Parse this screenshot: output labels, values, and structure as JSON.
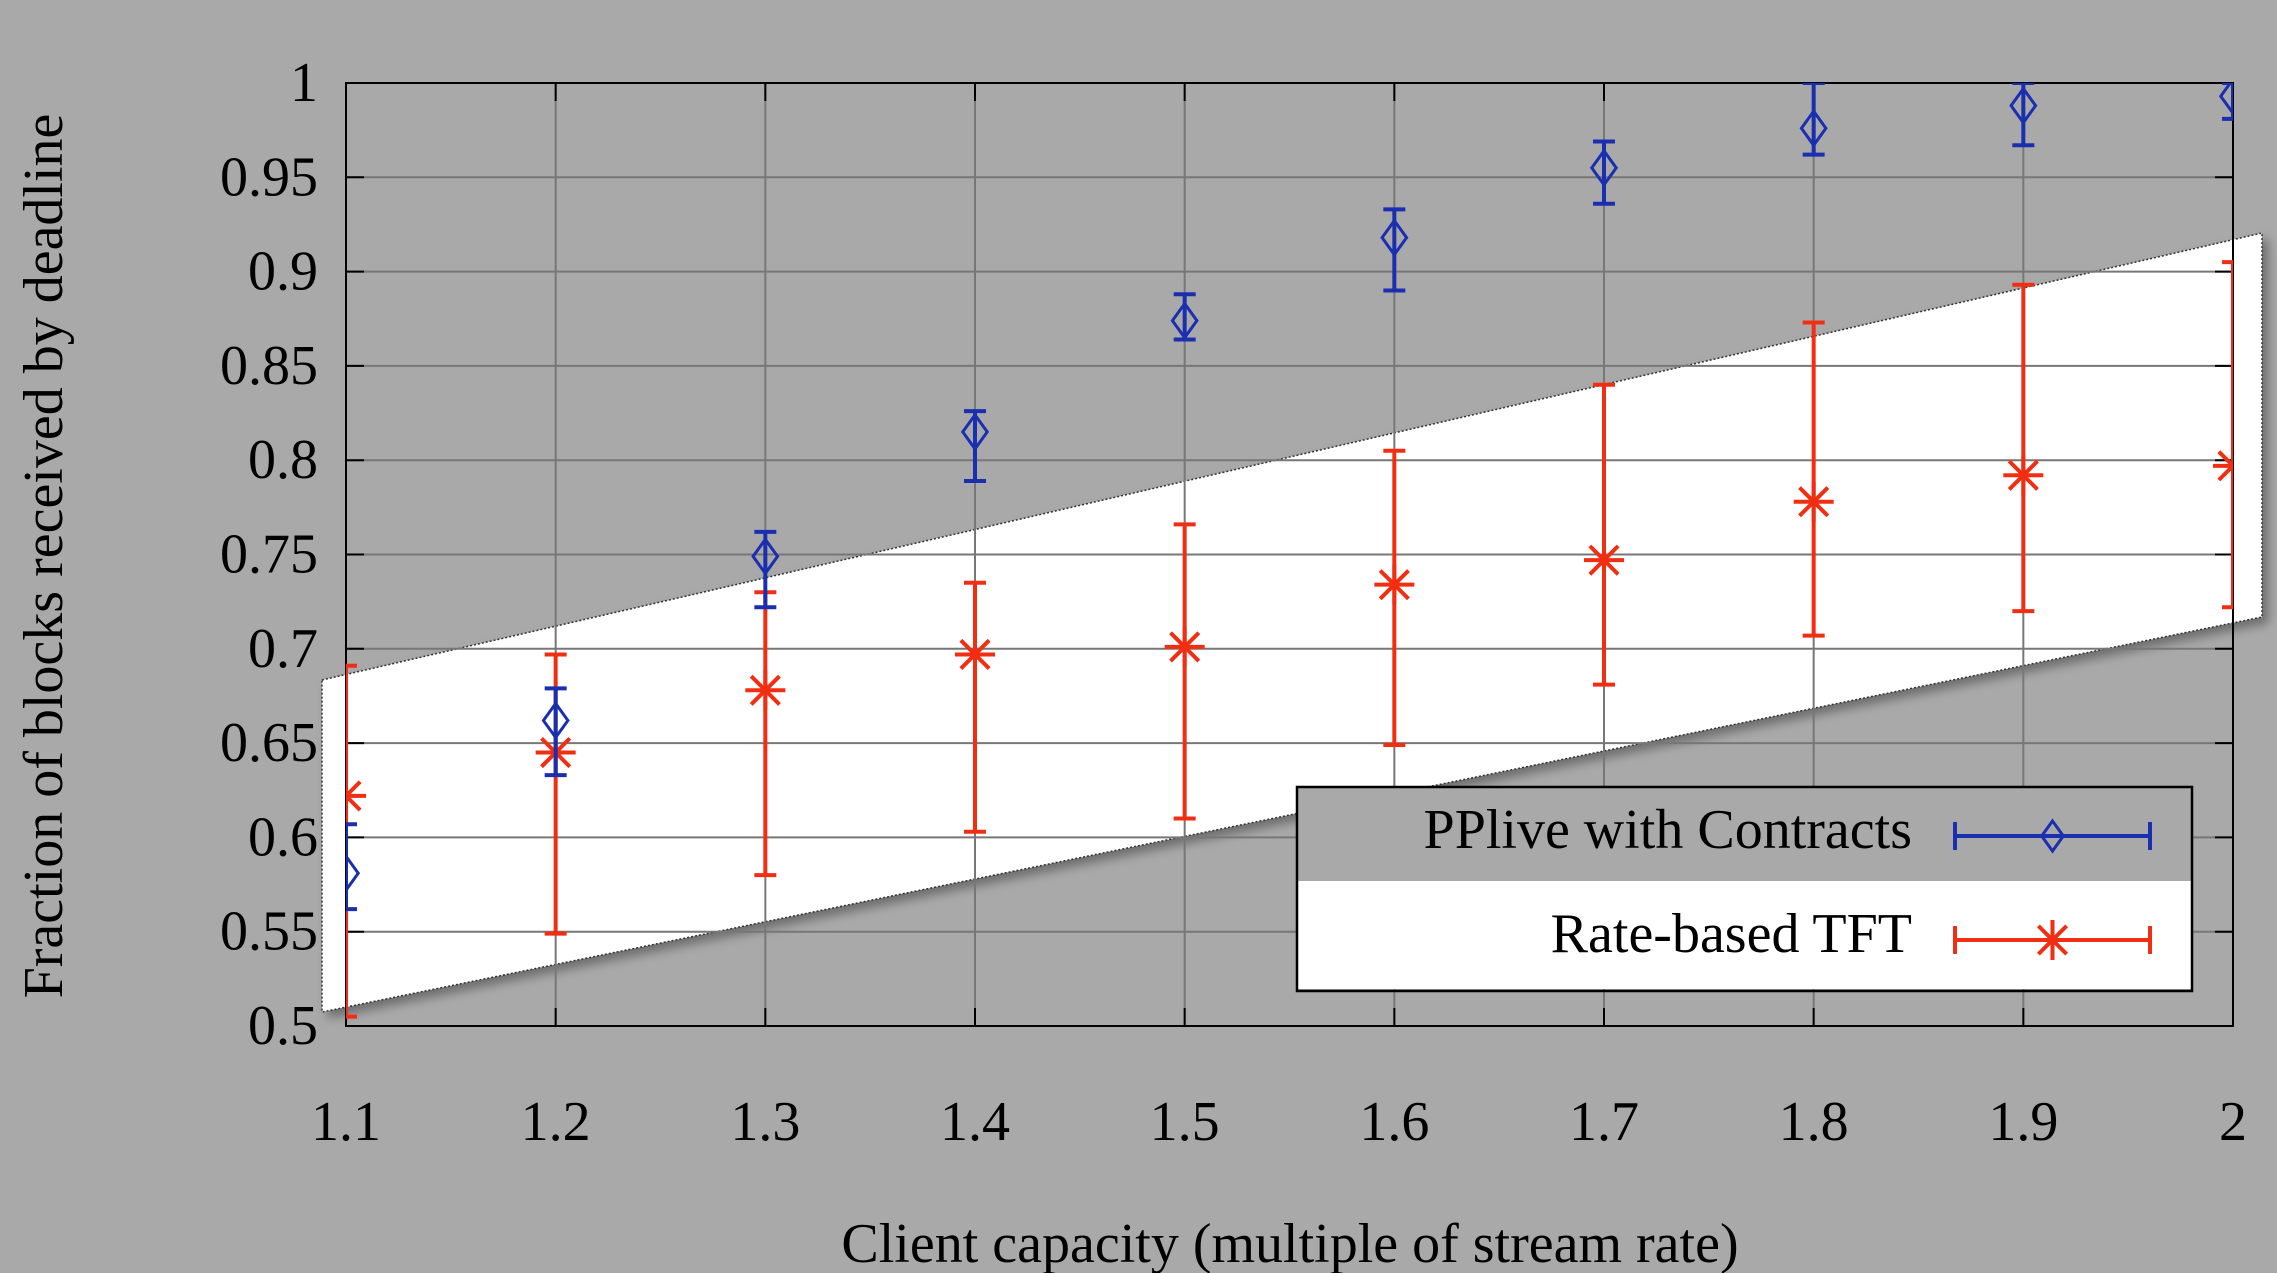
{
  "chart_data": {
    "type": "scatter",
    "title": "",
    "xlabel": "Client capacity (multiple of stream rate)",
    "ylabel": "Fraction of blocks received by deadline",
    "xlim": [
      1.1,
      2.0
    ],
    "ylim": [
      0.5,
      1.0
    ],
    "x_ticks": [
      1.1,
      1.2,
      1.3,
      1.4,
      1.5,
      1.6,
      1.7,
      1.8,
      1.9,
      2.0
    ],
    "x_tick_labels": [
      "1.1",
      "1.2",
      "1.3",
      "1.4",
      "1.5",
      "1.6",
      "1.7",
      "1.8",
      "1.9",
      "2"
    ],
    "y_ticks": [
      0.5,
      0.55,
      0.6,
      0.65,
      0.7,
      0.75,
      0.8,
      0.85,
      0.9,
      0.95,
      1.0
    ],
    "y_tick_labels": [
      "0.5",
      "0.55",
      "0.6",
      "0.65",
      "0.7",
      "0.75",
      "0.8",
      "0.85",
      "0.9",
      "0.95",
      "1"
    ],
    "grid": true,
    "legend_position": "bottom-right",
    "x": [
      1.1,
      1.2,
      1.3,
      1.4,
      1.5,
      1.6,
      1.7,
      1.8,
      1.9,
      2.0
    ],
    "series": [
      {
        "name": "PPlive with Contracts",
        "color": "#1a2fb0",
        "marker": "diamond",
        "values": [
          0.581,
          0.662,
          0.749,
          0.815,
          0.874,
          0.918,
          0.955,
          0.976,
          0.988,
          0.993
        ],
        "err_low": [
          0.562,
          0.633,
          0.722,
          0.789,
          0.864,
          0.89,
          0.936,
          0.962,
          0.967,
          0.981
        ],
        "err_high": [
          0.607,
          0.679,
          0.762,
          0.826,
          0.888,
          0.933,
          0.969,
          1.0,
          1.0,
          1.0
        ]
      },
      {
        "name": "Rate-based TFT",
        "color": "#f22e12",
        "marker": "star",
        "values": [
          0.622,
          0.645,
          0.678,
          0.697,
          0.701,
          0.734,
          0.747,
          0.778,
          0.792,
          0.797
        ],
        "err_low": [
          0.505,
          0.549,
          0.58,
          0.603,
          0.61,
          0.649,
          0.681,
          0.707,
          0.72,
          0.722
        ],
        "err_high": [
          0.691,
          0.697,
          0.73,
          0.735,
          0.766,
          0.805,
          0.84,
          0.873,
          0.893,
          0.905
        ]
      }
    ]
  }
}
